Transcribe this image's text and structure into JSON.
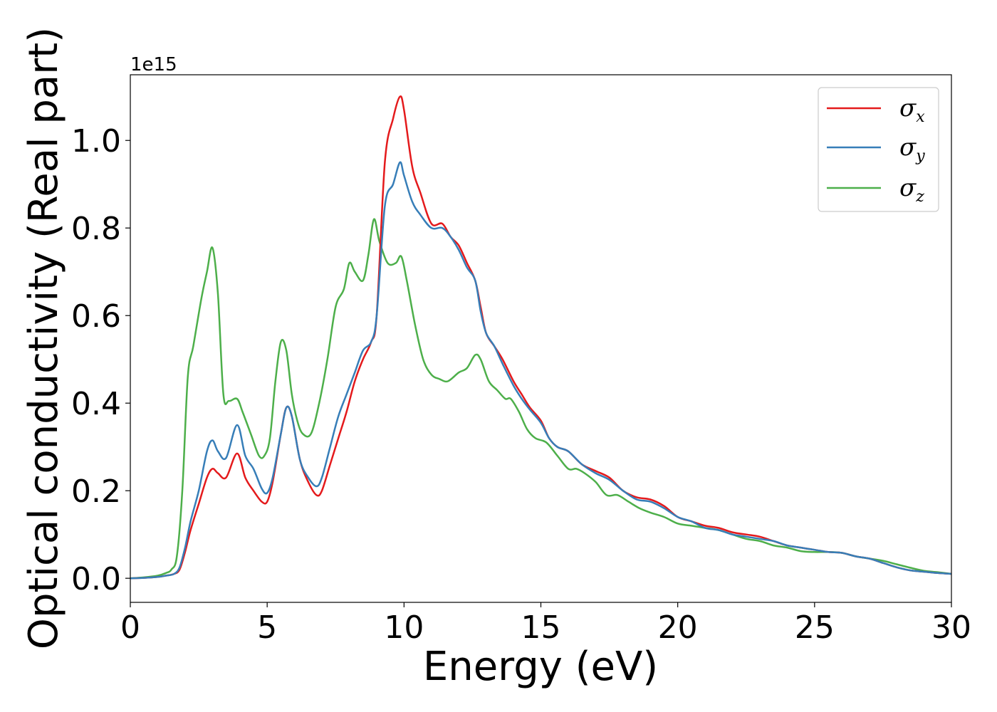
{
  "chart_data": {
    "type": "line",
    "xlabel": "Energy (eV)",
    "ylabel": "Optical conductivity (Real part)",
    "offset_text": "1e15",
    "xlim": [
      0,
      30
    ],
    "ylim": [
      -0.055,
      1.15
    ],
    "xticks": [
      0,
      5,
      10,
      15,
      20,
      25,
      30
    ],
    "xtick_labels": [
      "0",
      "5",
      "10",
      "15",
      "20",
      "25",
      "30"
    ],
    "yticks": [
      0.0,
      0.2,
      0.4,
      0.6,
      0.8,
      1.0
    ],
    "ytick_labels": [
      "0.0",
      "0.2",
      "0.4",
      "0.6",
      "0.8",
      "1.0"
    ],
    "grid": false,
    "legend_position": "top-right",
    "legend": [
      {
        "symbol": "σ",
        "subscript": "x"
      },
      {
        "symbol": "σ",
        "subscript": "y"
      },
      {
        "symbol": "σ",
        "subscript": "z"
      }
    ],
    "series": [
      {
        "color": "#e41a1c",
        "x": [
          0,
          0.5,
          1,
          1.3,
          1.6,
          1.8,
          2.0,
          2.2,
          2.5,
          2.8,
          3.0,
          3.2,
          3.5,
          3.9,
          4.2,
          4.5,
          4.8,
          5.0,
          5.2,
          5.5,
          5.7,
          5.9,
          6.2,
          6.5,
          6.8,
          7.0,
          7.3,
          7.6,
          7.9,
          8.2,
          8.5,
          8.8,
          9.0,
          9.3,
          9.6,
          9.85,
          10.0,
          10.3,
          10.6,
          11.0,
          11.4,
          11.7,
          12.0,
          12.3,
          12.6,
          12.8,
          13.0,
          13.3,
          13.6,
          14.0,
          14.3,
          14.6,
          15.0,
          15.3,
          15.6,
          16.0,
          16.5,
          17.0,
          17.5,
          18.0,
          18.5,
          19.0,
          19.5,
          20.0,
          20.5,
          21.0,
          21.5,
          22.0,
          22.5,
          23.0,
          23.5,
          24.0,
          24.5,
          25.0,
          25.5,
          26.0,
          26.5,
          27.0,
          27.5,
          28.0,
          28.5,
          29.0,
          29.5,
          30.0
        ],
        "y": [
          0,
          0.001,
          0.003,
          0.006,
          0.01,
          0.02,
          0.06,
          0.11,
          0.17,
          0.23,
          0.25,
          0.24,
          0.23,
          0.285,
          0.23,
          0.2,
          0.175,
          0.175,
          0.22,
          0.33,
          0.39,
          0.37,
          0.27,
          0.22,
          0.19,
          0.2,
          0.26,
          0.32,
          0.38,
          0.45,
          0.5,
          0.54,
          0.6,
          0.95,
          1.05,
          1.1,
          1.07,
          0.94,
          0.88,
          0.81,
          0.81,
          0.78,
          0.76,
          0.72,
          0.68,
          0.62,
          0.56,
          0.53,
          0.5,
          0.45,
          0.42,
          0.39,
          0.36,
          0.32,
          0.3,
          0.29,
          0.26,
          0.245,
          0.23,
          0.2,
          0.185,
          0.18,
          0.165,
          0.14,
          0.13,
          0.12,
          0.115,
          0.105,
          0.1,
          0.095,
          0.085,
          0.075,
          0.07,
          0.065,
          0.06,
          0.058,
          0.05,
          0.045,
          0.035,
          0.025,
          0.018,
          0.015,
          0.012,
          0.01
        ]
      },
      {
        "color": "#377eb8",
        "x": [
          0,
          0.5,
          1,
          1.3,
          1.6,
          1.8,
          2.0,
          2.2,
          2.5,
          2.8,
          3.0,
          3.2,
          3.5,
          3.9,
          4.2,
          4.5,
          4.8,
          5.0,
          5.2,
          5.5,
          5.7,
          5.9,
          6.2,
          6.5,
          6.8,
          7.0,
          7.3,
          7.6,
          7.9,
          8.2,
          8.5,
          8.8,
          9.0,
          9.3,
          9.6,
          9.85,
          10.0,
          10.3,
          10.6,
          11.0,
          11.4,
          11.7,
          12.0,
          12.3,
          12.6,
          12.8,
          13.0,
          13.3,
          13.6,
          14.0,
          14.3,
          14.6,
          15.0,
          15.3,
          15.6,
          16.0,
          16.5,
          17.0,
          17.5,
          18.0,
          18.5,
          19.0,
          19.5,
          20.0,
          20.5,
          21.0,
          21.5,
          22.0,
          22.5,
          23.0,
          23.5,
          24.0,
          24.5,
          25.0,
          25.5,
          26.0,
          26.5,
          27.0,
          27.5,
          28.0,
          28.5,
          29.0,
          29.5,
          30.0
        ],
        "y": [
          0,
          0.001,
          0.003,
          0.006,
          0.01,
          0.025,
          0.07,
          0.13,
          0.2,
          0.29,
          0.315,
          0.29,
          0.275,
          0.35,
          0.28,
          0.25,
          0.205,
          0.195,
          0.23,
          0.33,
          0.39,
          0.37,
          0.27,
          0.23,
          0.21,
          0.23,
          0.3,
          0.37,
          0.42,
          0.47,
          0.52,
          0.54,
          0.6,
          0.85,
          0.9,
          0.95,
          0.92,
          0.86,
          0.83,
          0.8,
          0.8,
          0.78,
          0.75,
          0.71,
          0.68,
          0.61,
          0.56,
          0.53,
          0.49,
          0.44,
          0.41,
          0.385,
          0.355,
          0.32,
          0.3,
          0.29,
          0.26,
          0.24,
          0.225,
          0.2,
          0.18,
          0.175,
          0.16,
          0.14,
          0.13,
          0.115,
          0.11,
          0.1,
          0.095,
          0.09,
          0.085,
          0.075,
          0.07,
          0.065,
          0.06,
          0.058,
          0.05,
          0.045,
          0.035,
          0.025,
          0.018,
          0.015,
          0.012,
          0.01
        ]
      },
      {
        "color": "#4daf4a",
        "x": [
          0,
          0.5,
          1,
          1.3,
          1.5,
          1.7,
          1.9,
          2.1,
          2.3,
          2.6,
          2.8,
          3.0,
          3.2,
          3.4,
          3.6,
          3.9,
          4.1,
          4.4,
          4.7,
          4.9,
          5.1,
          5.3,
          5.5,
          5.7,
          5.9,
          6.1,
          6.3,
          6.6,
          6.9,
          7.2,
          7.5,
          7.8,
          8.0,
          8.2,
          8.5,
          8.7,
          8.9,
          9.1,
          9.4,
          9.7,
          9.9,
          10.1,
          10.4,
          10.7,
          11.0,
          11.3,
          11.6,
          12.0,
          12.3,
          12.6,
          12.8,
          13.1,
          13.4,
          13.7,
          13.9,
          14.2,
          14.5,
          14.8,
          15.2,
          15.6,
          16.0,
          16.3,
          16.6,
          17.0,
          17.4,
          17.8,
          18.2,
          18.6,
          19.0,
          19.5,
          20.0,
          20.5,
          21.0,
          21.5,
          22.0,
          22.5,
          23.0,
          23.5,
          24.0,
          24.5,
          25.0,
          25.5,
          26.0,
          26.5,
          27.0,
          27.5,
          28.0,
          28.5,
          29.0,
          29.5,
          30.0
        ],
        "y": [
          0,
          0.002,
          0.006,
          0.012,
          0.02,
          0.05,
          0.2,
          0.46,
          0.53,
          0.64,
          0.7,
          0.755,
          0.65,
          0.42,
          0.405,
          0.41,
          0.38,
          0.33,
          0.28,
          0.28,
          0.32,
          0.45,
          0.54,
          0.52,
          0.42,
          0.36,
          0.33,
          0.33,
          0.4,
          0.5,
          0.62,
          0.66,
          0.72,
          0.7,
          0.68,
          0.74,
          0.82,
          0.77,
          0.72,
          0.72,
          0.735,
          0.68,
          0.58,
          0.5,
          0.465,
          0.455,
          0.45,
          0.47,
          0.48,
          0.51,
          0.5,
          0.45,
          0.43,
          0.41,
          0.41,
          0.38,
          0.34,
          0.32,
          0.31,
          0.28,
          0.25,
          0.25,
          0.24,
          0.22,
          0.19,
          0.19,
          0.175,
          0.16,
          0.15,
          0.14,
          0.125,
          0.12,
          0.115,
          0.11,
          0.1,
          0.09,
          0.085,
          0.075,
          0.07,
          0.062,
          0.06,
          0.06,
          0.058,
          0.05,
          0.045,
          0.04,
          0.032,
          0.024,
          0.017,
          0.014,
          0.01
        ]
      }
    ]
  }
}
